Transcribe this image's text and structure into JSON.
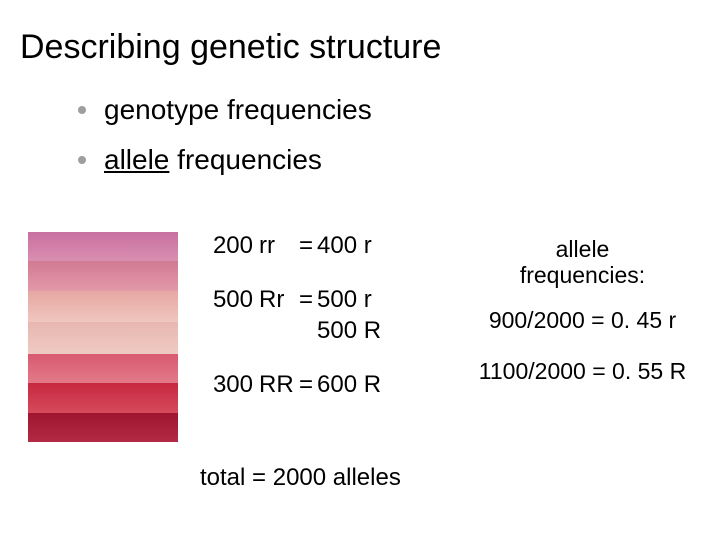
{
  "title": "Describing genetic structure",
  "bullets": {
    "b1": "genotype frequencies",
    "b2_underlined": "allele",
    "b2_rest": " frequencies"
  },
  "flower_image": {
    "bands": [
      {
        "height_pct": 14,
        "bg": "linear-gradient(180deg,#c86fa0,#d98fb0)"
      },
      {
        "height_pct": 14,
        "bg": "linear-gradient(180deg,#d27a94,#e29aa8)"
      },
      {
        "height_pct": 15,
        "bg": "linear-gradient(180deg,#e6a7a2,#f0c6be)"
      },
      {
        "height_pct": 15,
        "bg": "linear-gradient(180deg,#e7b7b0,#efcac2)"
      },
      {
        "height_pct": 14,
        "bg": "linear-gradient(180deg,#d85a70,#e27a88)"
      },
      {
        "height_pct": 14,
        "bg": "linear-gradient(180deg,#c62840,#d64a5c)"
      },
      {
        "height_pct": 14,
        "bg": "linear-gradient(180deg,#9e1530,#b22a44)"
      }
    ]
  },
  "calc": {
    "r1_count": "200",
    "r1_geno": "rr",
    "r1_eq": "=",
    "r1_val": "400 r",
    "r2_count": "500",
    "r2_geno": "Rr",
    "r2_eq": "=",
    "r2_val": "500 r",
    "r2b_val": "500 R",
    "r3_count": "300",
    "r3_geno": "RR",
    "r3_eq": "=",
    "r3_val": "600 R"
  },
  "right": {
    "label_l1": "allele",
    "label_l2": "frequencies:",
    "line1": "900/2000 = 0. 45 r",
    "line2": "1100/2000 = 0. 55 R"
  },
  "total": "total = 2000 alleles",
  "colors": {
    "bullet_dot": "#9e9e9e",
    "text": "#000000",
    "background": "#ffffff"
  },
  "typography": {
    "title_fontsize": 34,
    "bullet_fontsize": 28,
    "body_fontsize": 24,
    "right_fontsize": 23,
    "font_family": "Arial"
  }
}
